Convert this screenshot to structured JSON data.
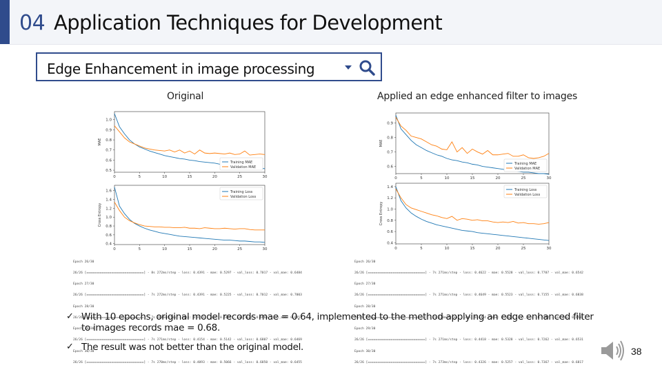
{
  "header": {
    "section_number": "04",
    "title": "Application Techniques for Development"
  },
  "search": {
    "value": "Edge Enhancement in image processing"
  },
  "left": {
    "caption": "Original",
    "mae_chart": {
      "type": "line",
      "ylabel": "MAE",
      "xticks": [
        "0",
        "5",
        "10",
        "15",
        "20",
        "25",
        "30"
      ],
      "yticks": [
        "0.5",
        "0.6",
        "0.7",
        "0.8",
        "0.9",
        "1.0"
      ],
      "xlim": [
        0,
        30
      ],
      "ylim": [
        0.48,
        1.08
      ],
      "legend": [
        "Training MAE",
        "Validation MAE"
      ],
      "legend_position": "bottom-right",
      "series": [
        {
          "name": "Training MAE",
          "color": "#1f77b4",
          "values": [
            1.06,
            0.93,
            0.86,
            0.8,
            0.76,
            0.73,
            0.71,
            0.69,
            0.675,
            0.66,
            0.645,
            0.635,
            0.625,
            0.615,
            0.61,
            0.6,
            0.595,
            0.585,
            0.58,
            0.575,
            0.57,
            0.56,
            0.555,
            0.55,
            0.545,
            0.54,
            0.535,
            0.53,
            0.525,
            0.52,
            0.515
          ]
        },
        {
          "name": "Validation MAE",
          "color": "#ff7f0e",
          "values": [
            0.94,
            0.88,
            0.82,
            0.78,
            0.76,
            0.74,
            0.72,
            0.71,
            0.7,
            0.695,
            0.69,
            0.7,
            0.68,
            0.7,
            0.67,
            0.69,
            0.66,
            0.7,
            0.67,
            0.665,
            0.67,
            0.665,
            0.66,
            0.67,
            0.655,
            0.66,
            0.69,
            0.65,
            0.655,
            0.66,
            0.655
          ]
        }
      ]
    },
    "loss_chart": {
      "type": "line",
      "ylabel": "Cross Entropy",
      "xticks": [
        "0",
        "5",
        "10",
        "15",
        "20",
        "25",
        "30"
      ],
      "yticks": [
        "0.4",
        "0.6",
        "0.8",
        "1.0",
        "1.2",
        "1.4",
        "1.6"
      ],
      "xlim": [
        0,
        30
      ],
      "ylim": [
        0.38,
        1.72
      ],
      "legend": [
        "Training Loss",
        "Validation Loss"
      ],
      "legend_position": "top-right",
      "series": [
        {
          "name": "Training Loss",
          "color": "#1f77b4",
          "values": [
            1.68,
            1.25,
            1.08,
            0.95,
            0.86,
            0.8,
            0.75,
            0.71,
            0.68,
            0.65,
            0.63,
            0.61,
            0.59,
            0.57,
            0.56,
            0.55,
            0.54,
            0.53,
            0.52,
            0.51,
            0.5,
            0.49,
            0.48,
            0.48,
            0.47,
            0.46,
            0.46,
            0.45,
            0.44,
            0.44,
            0.43
          ]
        },
        {
          "name": "Validation Loss",
          "color": "#ff7f0e",
          "values": [
            1.34,
            1.15,
            1.0,
            0.92,
            0.87,
            0.83,
            0.8,
            0.79,
            0.78,
            0.78,
            0.77,
            0.77,
            0.76,
            0.76,
            0.77,
            0.75,
            0.75,
            0.74,
            0.76,
            0.75,
            0.74,
            0.74,
            0.75,
            0.74,
            0.73,
            0.74,
            0.74,
            0.72,
            0.71,
            0.71,
            0.71
          ]
        }
      ]
    },
    "log_lines": [
      "Epoch 26/30",
      "26/26 [==============================] - 8s 272ms/step - loss: 0.4391 - mae: 0.5297 - val_loss: 0.7017 - val_mae: 0.6484",
      "Epoch 27/30",
      "26/26 [==============================] - 7s 272ms/step - loss: 0.4391 - mae: 0.5225 - val_loss: 0.7012 - val_mae: 0.7003",
      "Epoch 28/30",
      "26/26 [==============================] - 7s 263ms/step - loss: 0.4221 - mae: 0.5185 - val_loss: 0.6964 - val_mae: 0.6451",
      "Epoch 29/30",
      "26/26 [==============================] - 7s 271ms/step - loss: 0.4154 - mae: 0.5142 - val_loss: 0.6807 - val_mae: 0.6469",
      "Epoch 30/30",
      "26/26 [==============================] - 7s 270ms/step - loss: 0.4093 - mae: 0.5066 - val_loss: 0.6850 - val_mae: 0.6455"
    ]
  },
  "right": {
    "caption": "Applied an edge enhanced filter to images",
    "mae_chart": {
      "type": "line",
      "ylabel": "MAE",
      "xticks": [
        "0",
        "5",
        "10",
        "15",
        "20",
        "25",
        "30"
      ],
      "yticks": [
        "0.6",
        "0.7",
        "0.8",
        "0.9"
      ],
      "xlim": [
        0,
        30
      ],
      "ylim": [
        0.55,
        0.97
      ],
      "legend": [
        "Training MAE",
        "Validation MAE"
      ],
      "legend_position": "bottom-right",
      "series": [
        {
          "name": "Training MAE",
          "color": "#1f77b4",
          "values": [
            0.955,
            0.86,
            0.82,
            0.78,
            0.75,
            0.73,
            0.71,
            0.695,
            0.68,
            0.67,
            0.655,
            0.645,
            0.64,
            0.63,
            0.625,
            0.615,
            0.61,
            0.6,
            0.595,
            0.59,
            0.585,
            0.58,
            0.575,
            0.57,
            0.565,
            0.56,
            0.56,
            0.555,
            0.55,
            0.55,
            0.545
          ]
        },
        {
          "name": "Validation MAE",
          "color": "#ff7f0e",
          "values": [
            0.94,
            0.88,
            0.85,
            0.81,
            0.8,
            0.79,
            0.77,
            0.75,
            0.74,
            0.72,
            0.715,
            0.77,
            0.7,
            0.73,
            0.69,
            0.72,
            0.7,
            0.685,
            0.71,
            0.68,
            0.68,
            0.685,
            0.69,
            0.67,
            0.67,
            0.68,
            0.66,
            0.655,
            0.66,
            0.67,
            0.69
          ]
        }
      ]
    },
    "loss_chart": {
      "type": "line",
      "ylabel": "Cross Entropy",
      "xticks": [
        "0",
        "5",
        "10",
        "15",
        "20",
        "25",
        "30"
      ],
      "yticks": [
        "0.4",
        "0.6",
        "0.8",
        "1.0",
        "1.2",
        "1.4"
      ],
      "xlim": [
        0,
        30
      ],
      "ylim": [
        0.38,
        1.46
      ],
      "legend": [
        "Training Loss",
        "Validation Loss"
      ],
      "legend_position": "top-right",
      "series": [
        {
          "name": "Training Loss",
          "color": "#1f77b4",
          "values": [
            1.4,
            1.15,
            1.02,
            0.93,
            0.87,
            0.82,
            0.78,
            0.75,
            0.72,
            0.7,
            0.68,
            0.66,
            0.64,
            0.62,
            0.61,
            0.6,
            0.58,
            0.57,
            0.56,
            0.55,
            0.54,
            0.53,
            0.52,
            0.51,
            0.5,
            0.49,
            0.48,
            0.47,
            0.46,
            0.45,
            0.44
          ]
        },
        {
          "name": "Validation Loss",
          "color": "#ff7f0e",
          "values": [
            1.36,
            1.2,
            1.08,
            1.02,
            0.99,
            0.96,
            0.93,
            0.9,
            0.88,
            0.85,
            0.83,
            0.87,
            0.8,
            0.83,
            0.82,
            0.8,
            0.81,
            0.79,
            0.79,
            0.77,
            0.76,
            0.77,
            0.76,
            0.78,
            0.75,
            0.76,
            0.74,
            0.74,
            0.73,
            0.74,
            0.76
          ]
        }
      ]
    },
    "log_lines": [
      "Epoch 26/30",
      "26/26 [==============================] - 7s 271ms/step - loss: 0.4622 - mae: 0.5528 - val_loss: 0.7707 - val_mae: 0.6542",
      "Epoch 27/30",
      "26/26 [==============================] - 7s 271ms/step - loss: 0.4649 - mae: 0.5523 - val_loss: 0.7155 - val_mae: 0.6838",
      "Epoch 28/30",
      "26/26 [==============================] - 7s 270ms/step - loss: 0.4454 - mae: 0.5426 - val_loss: 0.7262 - val_mae: 0.6501",
      "Epoch 29/30",
      "26/26 [==============================] - 7s 271ms/step - loss: 0.4418 - mae: 0.5328 - val_loss: 0.7262 - val_mae: 0.6531",
      "Epoch 30/30",
      "26/26 [==============================] - 7s 273ms/step - loss: 0.4326 - mae: 0.5257 - val_loss: 0.7367 - val_mae: 0.6817"
    ]
  },
  "bullets": [
    {
      "check": "✓",
      "text": "With 10 epochs, original model records mae = 0.64, implemented to the method applying an edge enhanced filter to images records mae = 0.68."
    },
    {
      "check": "✓",
      "text": "The result was not better than the original model."
    }
  ],
  "footer": {
    "page_number": "38"
  },
  "colors": {
    "accent": "#2f4b8c",
    "training": "#1f77b4",
    "validation": "#ff7f0e"
  },
  "icons": {
    "search": "search-icon",
    "dropdown": "chevron-down-icon",
    "audio": "speaker-icon"
  }
}
